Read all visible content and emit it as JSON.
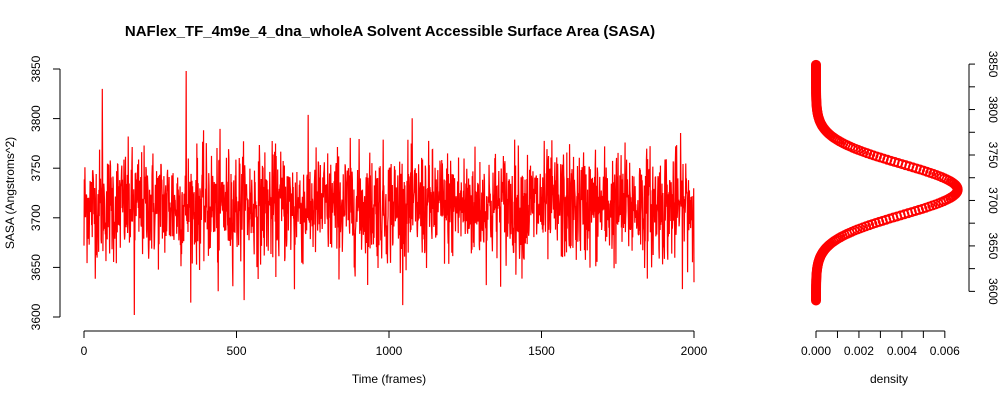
{
  "chart_data": [
    {
      "type": "line",
      "title": "NAFlex_TF_4m9e_4_dna_wholeA Solvent Accessible Surface Area (SASA)",
      "xlabel": "Time (frames)",
      "ylabel": "SASA (Angstroms^2)",
      "xlim": [
        0,
        2000
      ],
      "ylim": [
        3600,
        3850
      ],
      "x_ticks": [
        "0",
        "500",
        "1000",
        "1500",
        "2000"
      ],
      "y_ticks": [
        "3600",
        "3650",
        "3700",
        "3750",
        "3800",
        "3850"
      ],
      "grid": false,
      "color": "#ff0000",
      "n_frames": 2000,
      "mean": 3712,
      "sd": 28,
      "min": 3602,
      "max": 3848,
      "notable_points": [
        {
          "x": 0,
          "y": 3672
        },
        {
          "x": 60,
          "y": 3830
        },
        {
          "x": 165,
          "y": 3602
        },
        {
          "x": 335,
          "y": 3848
        },
        {
          "x": 440,
          "y": 3626
        },
        {
          "x": 690,
          "y": 3628
        },
        {
          "x": 2000,
          "y": 3635
        }
      ]
    },
    {
      "type": "line",
      "title": "",
      "xlabel": "density",
      "ylabel": "",
      "xlim": [
        0,
        0.0068
      ],
      "ylim": [
        3585,
        3860
      ],
      "x_ticks": [
        "0.000",
        "0.002",
        "0.004",
        "0.006"
      ],
      "y_ticks": [
        "3600",
        "3650",
        "3700",
        "3750",
        "3800",
        "3850"
      ],
      "y_axis_side": "right",
      "grid": false,
      "color": "#ff0000",
      "marker": "circle",
      "peak": {
        "y": 3712,
        "density": 0.0066
      },
      "range": [
        3590,
        3850
      ]
    }
  ]
}
